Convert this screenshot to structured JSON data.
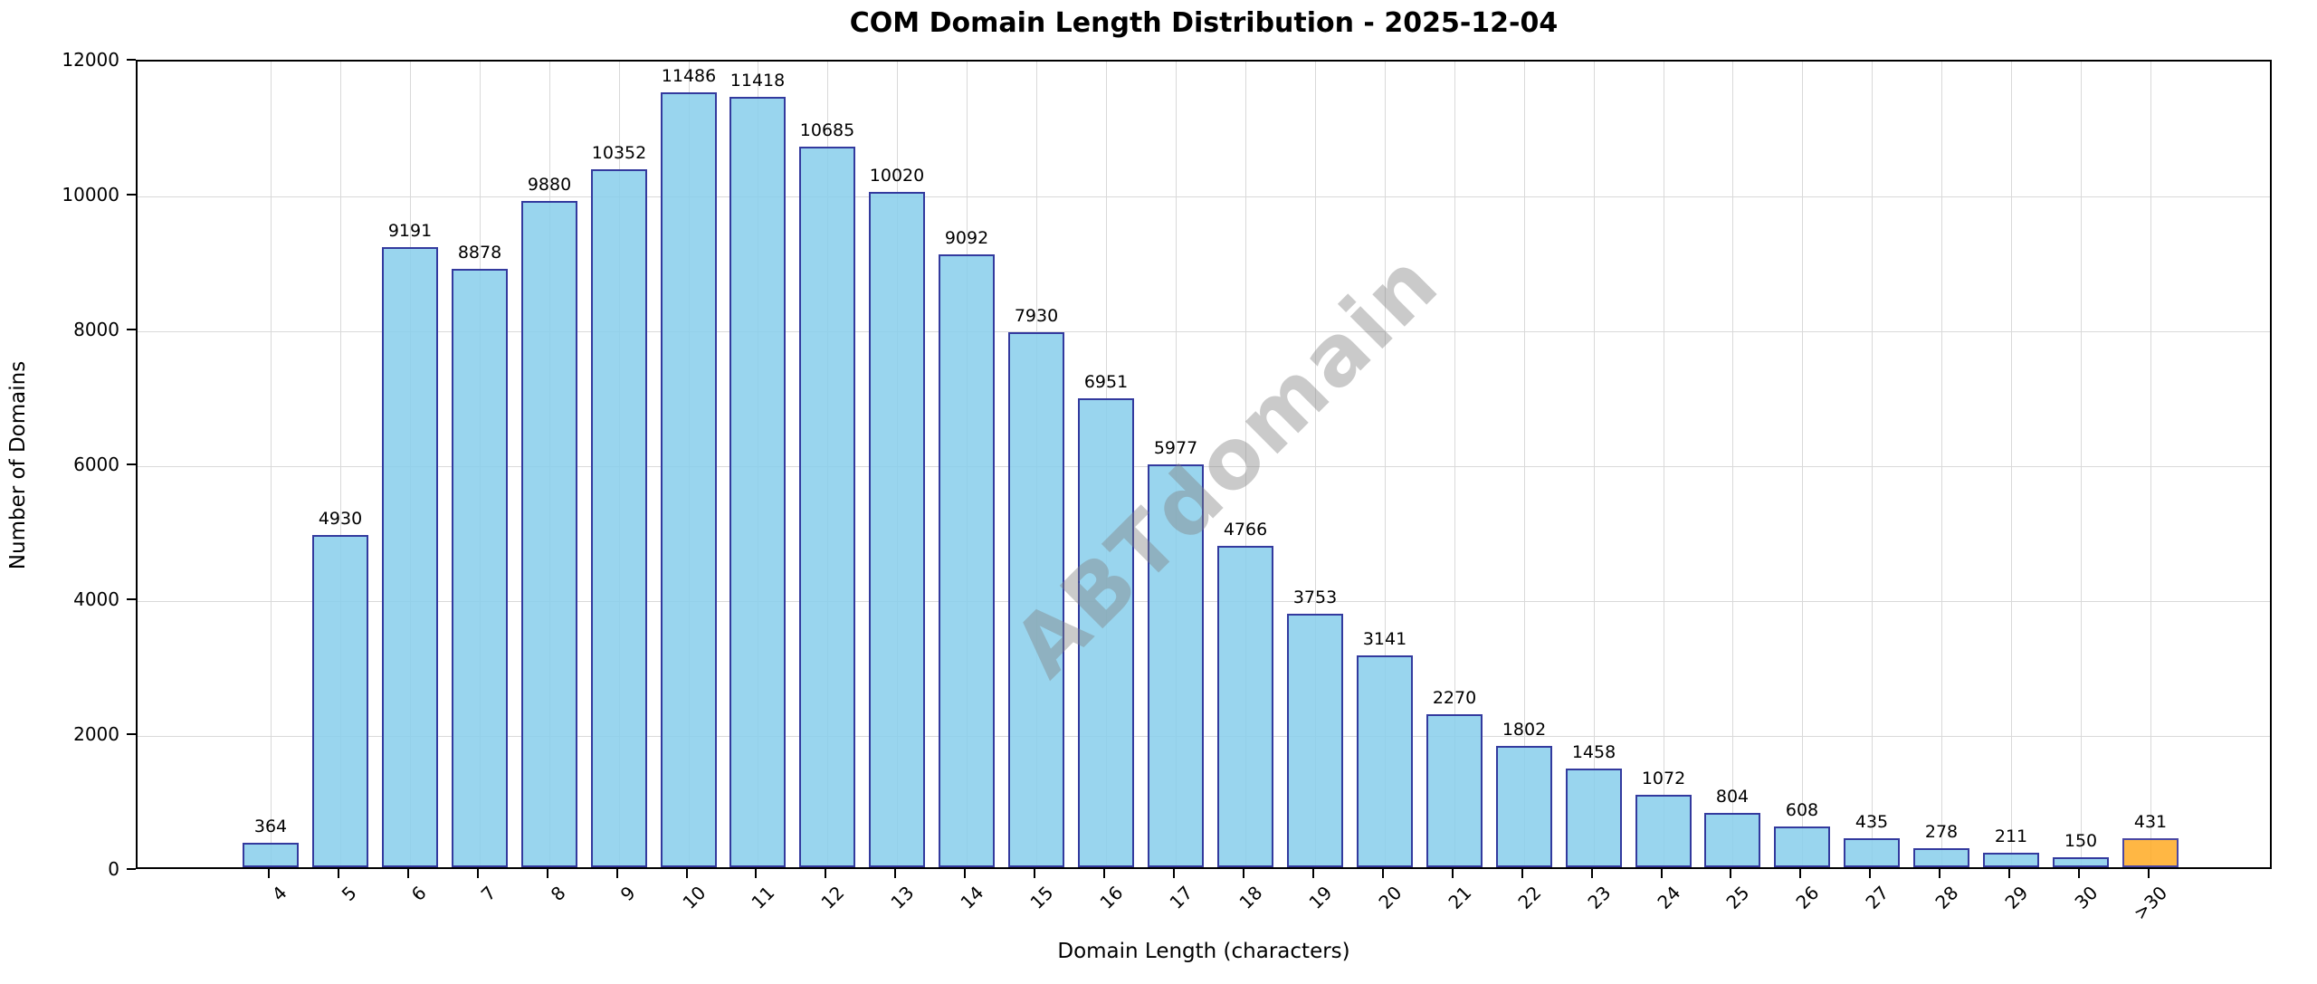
{
  "title": "COM Domain Length Distribution - 2025-12-04",
  "watermark": "ABTdomain",
  "chart_data": {
    "type": "bar",
    "title": "COM Domain Length Distribution - 2025-12-04",
    "xlabel": "Domain Length (characters)",
    "ylabel": "Number of Domains",
    "categories": [
      "4",
      "5",
      "6",
      "7",
      "8",
      "9",
      "10",
      "11",
      "12",
      "13",
      "14",
      "15",
      "16",
      "17",
      "18",
      "19",
      "20",
      "21",
      "22",
      "23",
      "24",
      "25",
      "26",
      "27",
      "28",
      "29",
      "30",
      ">30"
    ],
    "values": [
      364,
      4930,
      9191,
      8878,
      9880,
      10352,
      11486,
      11418,
      10685,
      10020,
      9092,
      7930,
      6951,
      5977,
      4766,
      3753,
      3141,
      2270,
      1802,
      1458,
      1072,
      804,
      608,
      435,
      278,
      211,
      150,
      431
    ],
    "value_labels_shown": true,
    "ylim": [
      0,
      12000
    ],
    "yticks": [
      0,
      2000,
      4000,
      6000,
      8000,
      10000,
      12000
    ],
    "grid": true,
    "legend": "none",
    "xtick_rotation_deg": 45,
    "bar_fill_color": "rgba(135,206,235,0.85)",
    "bar_edge_color": "#333a9e",
    "highlight_index": 27,
    "highlight_fill_color": "rgba(255,170,35,0.85)",
    "highlight_edge_color": "#4a47a3",
    "grid_color": "#d9d9d9",
    "spine_color": "#000000",
    "watermark_text": "ABTdomain",
    "watermark_color": "rgba(128,128,128,0.42)"
  }
}
